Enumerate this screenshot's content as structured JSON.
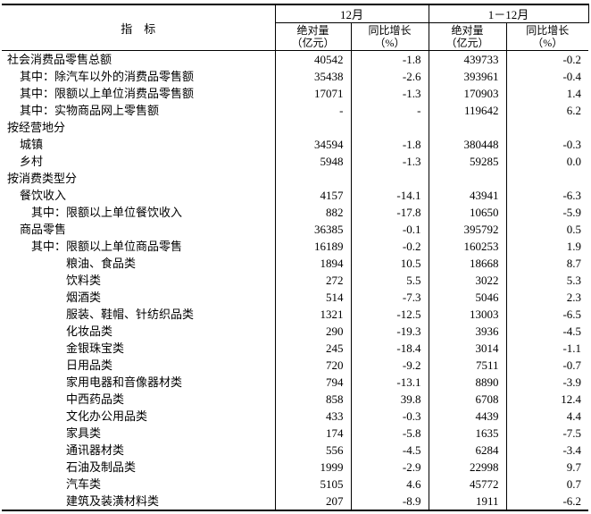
{
  "table": {
    "header": {
      "indicator": "指　标",
      "groups": [
        "12月",
        "1－12月"
      ],
      "sub": [
        {
          "line1": "绝对量",
          "line2": "（亿元）"
        },
        {
          "line1": "同比增长",
          "line2": "（%）"
        },
        {
          "line1": "绝对量",
          "line2": "（亿元）"
        },
        {
          "line1": "同比增长",
          "line2": "（%）"
        }
      ]
    },
    "rows": [
      {
        "label": "社会消费品零售总额",
        "indent": 0,
        "values": [
          "40542",
          "-1.8",
          "439733",
          "-0.2"
        ]
      },
      {
        "label": "其中：除汽车以外的消费品零售额",
        "indent": 1,
        "values": [
          "35438",
          "-2.6",
          "393961",
          "-0.4"
        ]
      },
      {
        "label": "其中：限额以上单位消费品零售额",
        "indent": 1,
        "values": [
          "17071",
          "-1.3",
          "170903",
          "1.4"
        ]
      },
      {
        "label": "其中：实物商品网上零售额",
        "indent": 1,
        "values": [
          "-",
          "-",
          "119642",
          "6.2"
        ]
      },
      {
        "label": "按经营地分",
        "indent": 0,
        "values": [
          "",
          "",
          "",
          ""
        ]
      },
      {
        "label": "城镇",
        "indent": 1,
        "values": [
          "34594",
          "-1.8",
          "380448",
          "-0.3"
        ]
      },
      {
        "label": "乡村",
        "indent": 1,
        "values": [
          "5948",
          "-1.3",
          "59285",
          "0.0"
        ]
      },
      {
        "label": "按消费类型分",
        "indent": 0,
        "values": [
          "",
          "",
          "",
          ""
        ]
      },
      {
        "label": "餐饮收入",
        "indent": 1,
        "values": [
          "4157",
          "-14.1",
          "43941",
          "-6.3"
        ]
      },
      {
        "label": "其中：限额以上单位餐饮收入",
        "indent": 2,
        "values": [
          "882",
          "-17.8",
          "10650",
          "-5.9"
        ]
      },
      {
        "label": "商品零售",
        "indent": 1,
        "values": [
          "36385",
          "-0.1",
          "395792",
          "0.5"
        ]
      },
      {
        "label": "其中：限额以上单位商品零售",
        "indent": 2,
        "values": [
          "16189",
          "-0.2",
          "160253",
          "1.9"
        ]
      },
      {
        "label": "粮油、食品类",
        "indent": 3,
        "values": [
          "1894",
          "10.5",
          "18668",
          "8.7"
        ]
      },
      {
        "label": "饮料类",
        "indent": 3,
        "values": [
          "272",
          "5.5",
          "3022",
          "5.3"
        ]
      },
      {
        "label": "烟酒类",
        "indent": 3,
        "values": [
          "514",
          "-7.3",
          "5046",
          "2.3"
        ]
      },
      {
        "label": "服装、鞋帽、针纺织品类",
        "indent": 3,
        "values": [
          "1321",
          "-12.5",
          "13003",
          "-6.5"
        ]
      },
      {
        "label": "化妆品类",
        "indent": 3,
        "values": [
          "290",
          "-19.3",
          "3936",
          "-4.5"
        ]
      },
      {
        "label": "金银珠宝类",
        "indent": 3,
        "values": [
          "245",
          "-18.4",
          "3014",
          "-1.1"
        ]
      },
      {
        "label": "日用品类",
        "indent": 3,
        "values": [
          "720",
          "-9.2",
          "7511",
          "-0.7"
        ]
      },
      {
        "label": "家用电器和音像器材类",
        "indent": 3,
        "values": [
          "794",
          "-13.1",
          "8890",
          "-3.9"
        ]
      },
      {
        "label": "中西药品类",
        "indent": 3,
        "values": [
          "858",
          "39.8",
          "6708",
          "12.4"
        ]
      },
      {
        "label": "文化办公用品类",
        "indent": 3,
        "values": [
          "433",
          "-0.3",
          "4439",
          "4.4"
        ]
      },
      {
        "label": "家具类",
        "indent": 3,
        "values": [
          "174",
          "-5.8",
          "1635",
          "-7.5"
        ]
      },
      {
        "label": "通讯器材类",
        "indent": 3,
        "values": [
          "556",
          "-4.5",
          "6284",
          "-3.4"
        ]
      },
      {
        "label": "石油及制品类",
        "indent": 3,
        "values": [
          "1999",
          "-2.9",
          "22998",
          "9.7"
        ]
      },
      {
        "label": "汽车类",
        "indent": 3,
        "values": [
          "5105",
          "4.6",
          "45772",
          "0.7"
        ]
      },
      {
        "label": "建筑及装潢材料类",
        "indent": 3,
        "values": [
          "207",
          "-8.9",
          "1911",
          "-6.2"
        ]
      }
    ]
  }
}
